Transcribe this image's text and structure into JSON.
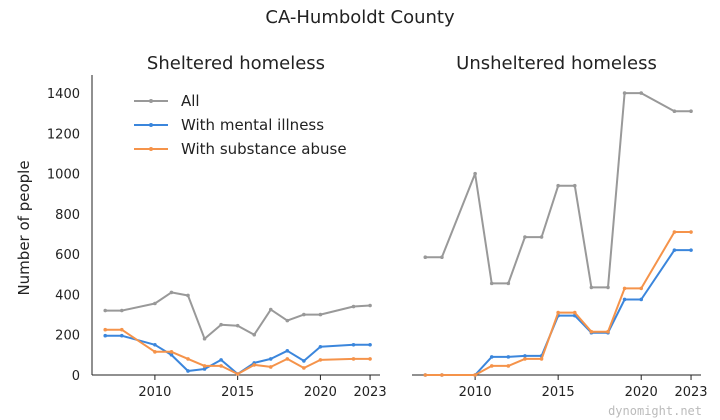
{
  "figure_title": "CA-Humboldt County",
  "watermark": "dynomight.net",
  "colors": {
    "All": "#999999",
    "With mental illness": "#3b86dc",
    "With substance abuse": "#f5934a",
    "axis": "#222222"
  },
  "chart_data": [
    {
      "type": "line",
      "title": "Sheltered homeless",
      "ylabel": "Number of people",
      "xlabel": "",
      "xlim": [
        2006.2,
        2023.6
      ],
      "ylim": [
        0,
        1450
      ],
      "xticks": [
        2010,
        2015,
        2020,
        2023
      ],
      "yticks": [
        0,
        200,
        400,
        600,
        800,
        1000,
        1200,
        1400
      ],
      "grid": false,
      "legend": "top-left",
      "x": [
        2007,
        2008,
        2010,
        2011,
        2012,
        2013,
        2014,
        2015,
        2016,
        2017,
        2018,
        2019,
        2020,
        2022,
        2023
      ],
      "series": [
        {
          "name": "All",
          "values": [
            320,
            320,
            355,
            410,
            395,
            180,
            250,
            245,
            200,
            325,
            270,
            300,
            300,
            340,
            345
          ]
        },
        {
          "name": "With mental illness",
          "values": [
            195,
            195,
            150,
            100,
            20,
            30,
            75,
            5,
            60,
            80,
            120,
            70,
            140,
            150,
            150
          ]
        },
        {
          "name": "With substance abuse",
          "values": [
            225,
            225,
            115,
            115,
            80,
            45,
            45,
            5,
            50,
            40,
            80,
            35,
            75,
            80,
            80
          ]
        }
      ]
    },
    {
      "type": "line",
      "title": "Unsheltered homeless",
      "ylabel": "",
      "xlabel": "",
      "xlim": [
        2006.2,
        2023.6
      ],
      "ylim": [
        0,
        1450
      ],
      "xticks": [
        2010,
        2015,
        2020,
        2023
      ],
      "grid": false,
      "x": [
        2007,
        2008,
        2010,
        2011,
        2012,
        2013,
        2014,
        2015,
        2016,
        2017,
        2018,
        2019,
        2020,
        2022,
        2023
      ],
      "series": [
        {
          "name": "All",
          "values": [
            585,
            585,
            1000,
            455,
            455,
            685,
            685,
            940,
            940,
            435,
            435,
            1400,
            1400,
            1310,
            1310
          ]
        },
        {
          "name": "With mental illness",
          "values": [
            0,
            0,
            0,
            90,
            90,
            95,
            95,
            295,
            295,
            210,
            210,
            375,
            375,
            620,
            620
          ]
        },
        {
          "name": "With substance abuse",
          "values": [
            0,
            0,
            0,
            45,
            45,
            80,
            80,
            310,
            310,
            215,
            215,
            430,
            430,
            710,
            710
          ]
        }
      ]
    }
  ]
}
